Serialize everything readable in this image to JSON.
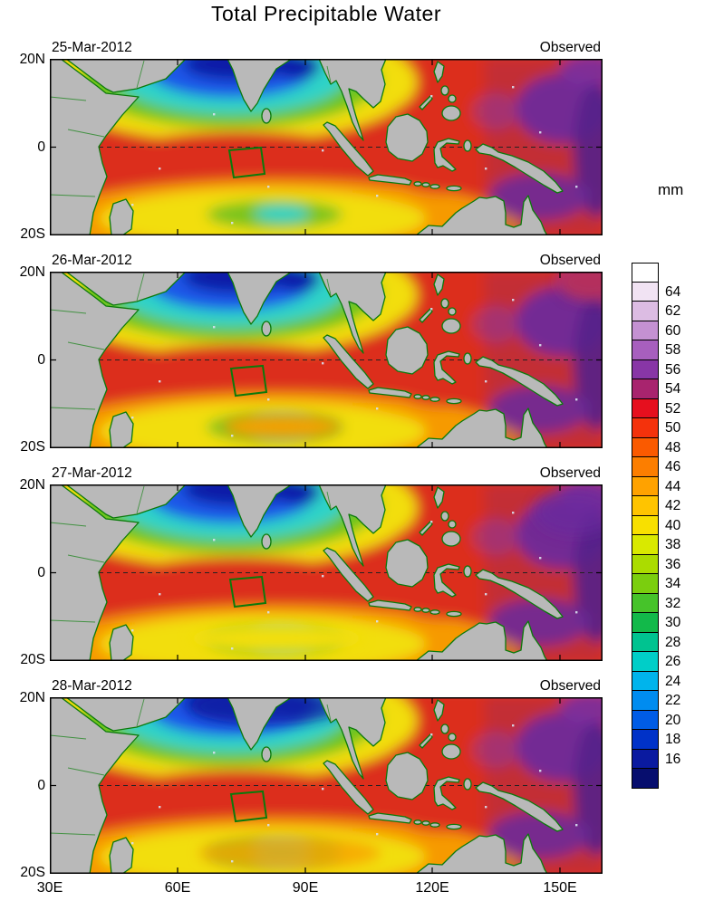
{
  "title": "Total Precipitable Water",
  "panels": [
    {
      "date": "25-Mar-2012",
      "source": "Observed"
    },
    {
      "date": "26-Mar-2012",
      "source": "Observed"
    },
    {
      "date": "27-Mar-2012",
      "source": "Observed"
    },
    {
      "date": "28-Mar-2012",
      "source": "Observed"
    }
  ],
  "y_axis": {
    "ticks": [
      "20N",
      "0",
      "20S"
    ]
  },
  "x_axis": {
    "ticks": [
      "30E",
      "60E",
      "90E",
      "120E",
      "150E"
    ]
  },
  "colorbar": {
    "unit": "mm",
    "cells": [
      {
        "label": "",
        "color": "#FFFFFF"
      },
      {
        "label": "64",
        "color": "#F1E3F3"
      },
      {
        "label": "62",
        "color": "#DCBCE3"
      },
      {
        "label": "60",
        "color": "#C491D2"
      },
      {
        "label": "58",
        "color": "#A75FBE"
      },
      {
        "label": "56",
        "color": "#8836A6"
      },
      {
        "label": "54",
        "color": "#A8246E"
      },
      {
        "label": "52",
        "color": "#E60F1E"
      },
      {
        "label": "50",
        "color": "#F4320C"
      },
      {
        "label": "48",
        "color": "#FA5A00"
      },
      {
        "label": "46",
        "color": "#FC7E00"
      },
      {
        "label": "44",
        "color": "#FFA200"
      },
      {
        "label": "42",
        "color": "#FFC400"
      },
      {
        "label": "40",
        "color": "#F8E000"
      },
      {
        "label": "38",
        "color": "#D9E900"
      },
      {
        "label": "36",
        "color": "#ABDC00"
      },
      {
        "label": "34",
        "color": "#7BCE0E"
      },
      {
        "label": "32",
        "color": "#46C32A"
      },
      {
        "label": "30",
        "color": "#12B94A"
      },
      {
        "label": "28",
        "color": "#00C390"
      },
      {
        "label": "26",
        "color": "#00CEC8"
      },
      {
        "label": "24",
        "color": "#00B4EC"
      },
      {
        "label": "22",
        "color": "#008CF0"
      },
      {
        "label": "20",
        "color": "#005CE6"
      },
      {
        "label": "18",
        "color": "#0032C8"
      },
      {
        "label": "16",
        "color": "#0A1AA0"
      },
      {
        "label": "",
        "color": "#070E6E"
      }
    ]
  },
  "chart_data": {
    "type": "heatmap",
    "title": "Total Precipitable Water",
    "unit": "mm",
    "value_range": [
      16,
      64
    ],
    "contour_interval": 2,
    "lon_range": [
      "30E",
      "160E"
    ],
    "lat_range": [
      "20S",
      "20N"
    ],
    "x_ticks": [
      "30E",
      "60E",
      "90E",
      "120E",
      "150E"
    ],
    "y_ticks": [
      "20N",
      "0",
      "20S"
    ],
    "legend_position": "right",
    "panels": [
      {
        "date": "25-Mar-2012",
        "label": "Observed"
      },
      {
        "date": "26-Mar-2012",
        "label": "Observed"
      },
      {
        "date": "27-Mar-2012",
        "label": "Observed"
      },
      {
        "date": "28-Mar-2012",
        "label": "Observed"
      }
    ],
    "regions": [
      {
        "area": "northern Arabian Sea and Bay of Bengal (60E-95E, 10N-20N)",
        "approx_value_mm": "16-30",
        "appearance": "dark blue / cyan minimum"
      },
      {
        "area": "ring around dry core (50E-105E, 0-15N)",
        "approx_value_mm": "30-42",
        "appearance": "green to yellow transition"
      },
      {
        "area": "equatorial Indian Ocean and Maritime Continent seas",
        "approx_value_mm": "46-54",
        "appearance": "red maximum"
      },
      {
        "area": "western Pacific 130E-160E",
        "approx_value_mm": "54-64",
        "appearance": "purple very-moist patches"
      },
      {
        "area": "subtropical south Indian Ocean 10S-20S",
        "approx_value_mm": "36-46",
        "appearance": "yellow/orange band with local green-cyan minima"
      }
    ],
    "annotations": [
      {
        "shape": "dashed-line",
        "at": "equator (0 latitude)"
      },
      {
        "shape": "green-box",
        "at": "approximately 72E-80E, 0-7S",
        "meaning": "outlined study region in every panel"
      }
    ]
  }
}
